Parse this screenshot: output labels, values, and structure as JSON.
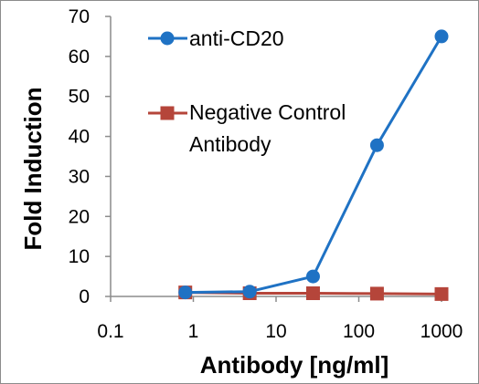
{
  "chart_data": {
    "type": "line",
    "xlabel": "Antibody [ng/ml]",
    "ylabel": "Fold Induction",
    "xscale": "log",
    "xlim": [
      0.1,
      1000
    ],
    "ylim": [
      0,
      70
    ],
    "x_ticks": [
      "0.1",
      "1",
      "10",
      "100",
      "1000"
    ],
    "y_ticks": [
      "0",
      "10",
      "20",
      "30",
      "40",
      "50",
      "60",
      "70"
    ],
    "grid": false,
    "legend_placement": "top-left",
    "series": [
      {
        "name": "anti-CD20",
        "color": "#1f72c4",
        "marker": "circle",
        "x": [
          0.8,
          4.8,
          28,
          166,
          1000
        ],
        "y": [
          1.0,
          1.2,
          5.0,
          37.8,
          65.0
        ]
      },
      {
        "name": "Negative Control Antibody",
        "legend_lines": [
          "Negative Control",
          "Antibody"
        ],
        "color": "#b5453a",
        "marker": "square",
        "x": [
          0.8,
          4.8,
          28,
          166,
          1000
        ],
        "y": [
          1.0,
          0.8,
          0.8,
          0.7,
          0.6
        ]
      }
    ]
  }
}
